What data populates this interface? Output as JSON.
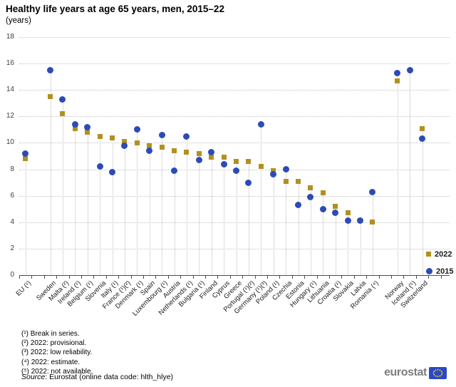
{
  "chart_data": {
    "type": "scatter",
    "title": "Healthy life years at age 65 years, men, 2015–22",
    "subtitle": "(years)",
    "ylim": [
      0,
      18
    ],
    "ytick_step": 2,
    "grid": "horizontal-dotted",
    "legend_position": "bottom-right",
    "categories": [
      "EU (¹)",
      "Sweden",
      "Malta (²)",
      "Ireland (¹)",
      "Belgium (¹)",
      "Slovenia",
      "Italy (¹)",
      "France (¹)(²)",
      "Denmark (¹)",
      "Spain",
      "Luxembourg (¹)",
      "Austria",
      "Netherlands (¹)",
      "Bulgaria (¹)",
      "Finland",
      "Cyprus",
      "Greece",
      "Portugal (¹)(²)",
      "Germany (¹)(³)",
      "Poland (¹)",
      "Czechia",
      "Estonia",
      "Hungary (¹)",
      "Lithuania",
      "Croatia (¹)",
      "Slovakia",
      "Latvia",
      "Romania (⁴)",
      "Norway",
      "Iceland (⁵)",
      "Switzerland"
    ],
    "slots": [
      0,
      2,
      3,
      4,
      5,
      6,
      7,
      8,
      9,
      10,
      11,
      12,
      13,
      14,
      15,
      16,
      17,
      18,
      19,
      20,
      21,
      22,
      23,
      24,
      25,
      26,
      27,
      28,
      30,
      31,
      32
    ],
    "total_slots": 33,
    "series": [
      {
        "name": "2022",
        "marker": "square",
        "color": "#b09120",
        "values": [
          8.8,
          13.5,
          12.2,
          11.1,
          10.8,
          10.5,
          10.4,
          10.1,
          10.0,
          9.8,
          9.7,
          9.4,
          9.3,
          9.2,
          8.9,
          8.9,
          8.6,
          8.6,
          8.2,
          7.9,
          7.1,
          7.1,
          6.6,
          6.2,
          5.2,
          4.7,
          4.1,
          4.0,
          14.7,
          null,
          11.1
        ]
      },
      {
        "name": "2015",
        "marker": "circle",
        "color": "#2b4bb8",
        "values": [
          9.2,
          15.5,
          13.3,
          11.4,
          11.2,
          8.2,
          7.8,
          9.8,
          11.0,
          9.4,
          10.6,
          7.9,
          10.5,
          8.7,
          9.3,
          8.4,
          7.9,
          7.0,
          11.4,
          7.6,
          8.0,
          5.3,
          5.9,
          5.0,
          4.7,
          4.1,
          4.1,
          6.3,
          15.3,
          15.5,
          10.3
        ]
      }
    ]
  },
  "footnotes": [
    "(¹) Break in series.",
    "(²) 2022: provisional.",
    "(³) 2022: low reliability.",
    "(⁴) 2022: estimate.",
    "(⁵) 2022: not available."
  ],
  "source": {
    "label": "Source",
    "text": ": Eurostat (online data code: hlth_hlye)"
  },
  "logo": {
    "text": "eurostat"
  }
}
